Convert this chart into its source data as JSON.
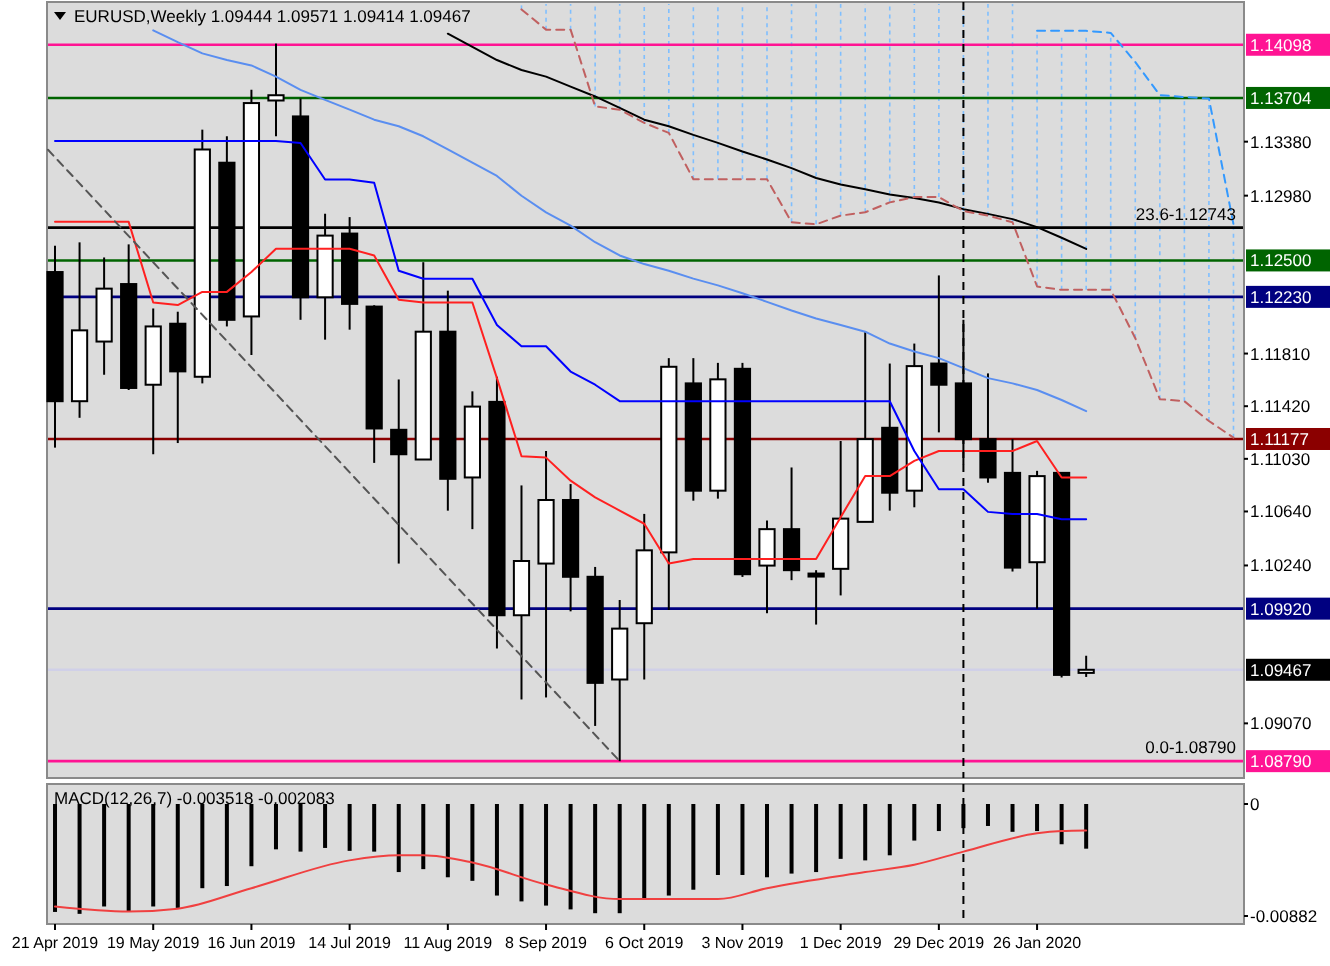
{
  "chart_data": [
    {
      "type": "candlestick",
      "title": "EURUSD,Weekly  1.09444 1.09571 1.09414 1.09467",
      "x": [
        "2019-04-21",
        "2019-04-28",
        "2019-05-05",
        "2019-05-12",
        "2019-05-19",
        "2019-05-26",
        "2019-06-02",
        "2019-06-09",
        "2019-06-16",
        "2019-06-23",
        "2019-06-30",
        "2019-07-07",
        "2019-07-14",
        "2019-07-21",
        "2019-07-28",
        "2019-08-04",
        "2019-08-11",
        "2019-08-18",
        "2019-08-25",
        "2019-09-01",
        "2019-09-08",
        "2019-09-15",
        "2019-09-22",
        "2019-09-29",
        "2019-10-06",
        "2019-10-13",
        "2019-10-20",
        "2019-10-27",
        "2019-11-03",
        "2019-11-10",
        "2019-11-17",
        "2019-11-24",
        "2019-12-01",
        "2019-12-08",
        "2019-12-15",
        "2019-12-22",
        "2019-12-29",
        "2020-01-05",
        "2020-01-12",
        "2020-01-19",
        "2020-01-26",
        "2020-02-02",
        "2020-02-09"
      ],
      "ohlc": [
        [
          1.12414,
          1.12609,
          1.11113,
          1.11457
        ],
        [
          1.11457,
          1.12634,
          1.11334,
          1.11982
        ],
        [
          1.11899,
          1.12522,
          1.11653,
          1.12291
        ],
        [
          1.12325,
          1.12619,
          1.1154,
          1.11555
        ],
        [
          1.11579,
          1.12144,
          1.11064,
          1.12011
        ],
        [
          1.12031,
          1.1212,
          1.11147,
          1.11678
        ],
        [
          1.11638,
          1.13469,
          1.11589,
          1.13322
        ],
        [
          1.13224,
          1.1342,
          1.12011,
          1.1206
        ],
        [
          1.12085,
          1.13764,
          1.118,
          1.13666
        ],
        [
          1.13685,
          1.14107,
          1.1342,
          1.13724
        ],
        [
          1.13567,
          1.137,
          1.1206,
          1.12227
        ],
        [
          1.12227,
          1.12846,
          1.11913,
          1.12684
        ],
        [
          1.12699,
          1.12821,
          1.11987,
          1.12178
        ],
        [
          1.12158,
          1.12168,
          1.11,
          1.11255
        ],
        [
          1.11245,
          1.11618,
          1.10254,
          1.11064
        ],
        [
          1.11025,
          1.12487,
          1.11025,
          1.11972
        ],
        [
          1.11972,
          1.12276,
          1.10646,
          1.10882
        ],
        [
          1.10892,
          1.1153,
          1.10509,
          1.11417
        ],
        [
          1.11452,
          1.11638,
          1.09625,
          1.09871
        ],
        [
          1.09871,
          1.10833,
          1.09247,
          1.10273
        ],
        [
          1.10254,
          1.11088,
          1.09262,
          1.10725
        ],
        [
          1.10725,
          1.10843,
          1.099,
          1.10156
        ],
        [
          1.10156,
          1.10229,
          1.09051,
          1.0937
        ],
        [
          1.09395,
          1.09984,
          1.0879,
          1.09772
        ],
        [
          1.09812,
          1.10622,
          1.09395,
          1.10352
        ],
        [
          1.10337,
          1.11776,
          1.0991,
          1.11712
        ],
        [
          1.11589,
          1.11776,
          1.1072,
          1.10794
        ],
        [
          1.10794,
          1.11741,
          1.10735,
          1.11619
        ],
        [
          1.11697,
          1.11741,
          1.10155,
          1.10175
        ],
        [
          1.10239,
          1.10573,
          1.09886,
          1.10509
        ],
        [
          1.10509,
          1.10966,
          1.10131,
          1.10205
        ],
        [
          1.1018,
          1.10205,
          1.09802,
          1.1016
        ],
        [
          1.10215,
          1.11162,
          1.10018,
          1.10587
        ],
        [
          1.10563,
          1.11972,
          1.10563,
          1.11176
        ],
        [
          1.1126,
          1.11736,
          1.10646,
          1.10779
        ],
        [
          1.10794,
          1.11884,
          1.10671,
          1.11717
        ],
        [
          1.11736,
          1.12389,
          1.11226,
          1.11579
        ],
        [
          1.11589,
          1.1206,
          1.1099,
          1.11176
        ],
        [
          1.11176,
          1.11663,
          1.10853,
          1.10892
        ],
        [
          1.10926,
          1.11176,
          1.10195,
          1.10224
        ],
        [
          1.10264,
          1.10941,
          1.0992,
          1.10902
        ],
        [
          1.10926,
          1.10926,
          1.0941,
          1.09429
        ],
        [
          1.09444,
          1.09571,
          1.09414,
          1.09467
        ]
      ],
      "series": [
        {
          "type": "line",
          "color": "#ff2020",
          "values": [
            1.12786,
            1.12786,
            1.12786,
            1.12786,
            1.12188,
            1.12169,
            1.12267,
            1.12267,
            1.12414,
            1.12586,
            1.12586,
            1.12586,
            1.12586,
            1.12537,
            1.12208,
            1.12188,
            1.12188,
            1.12188,
            1.11628,
            1.11049,
            1.11039,
            1.10868,
            1.10745,
            1.10647,
            1.10549,
            1.10254,
            1.10288,
            1.10288,
            1.10288,
            1.10288,
            1.10288,
            1.10288,
            1.10598,
            1.10902,
            1.10902,
            1.11015,
            1.11088,
            1.11088,
            1.11088,
            1.11088,
            1.11162,
            1.10892,
            1.10892
          ]
        },
        {
          "type": "line",
          "color": "#0000ff",
          "values": [
            1.13385,
            1.13385,
            1.13385,
            1.13385,
            1.13385,
            1.13385,
            1.13385,
            1.13385,
            1.13385,
            1.13385,
            1.1337,
            1.131,
            1.131,
            1.13076,
            1.12423,
            1.12364,
            1.12364,
            1.12364,
            1.12021,
            1.11864,
            1.11864,
            1.11677,
            1.11579,
            1.11457,
            1.11457,
            1.11457,
            1.11457,
            1.11457,
            1.11457,
            1.11457,
            1.11457,
            1.11457,
            1.11457,
            1.11457,
            1.11457,
            1.11088,
            1.10804,
            1.10804,
            1.10637,
            1.10622,
            1.10622,
            1.10583,
            1.10583
          ]
        },
        {
          "type": "line",
          "color": "#5a8ef0",
          "values": [
            null,
            null,
            null,
            null,
            1.14205,
            1.14117,
            1.14034,
            1.13985,
            1.13945,
            1.13862,
            1.13764,
            1.1369,
            1.13617,
            1.13543,
            1.13494,
            1.1342,
            1.13322,
            1.13224,
            1.13126,
            1.12979,
            1.12856,
            1.12758,
            1.12635,
            1.12537,
            1.12473,
            1.12424,
            1.12365,
            1.12315,
            1.12257,
            1.12193,
            1.12129,
            1.1207,
            1.12021,
            1.11972,
            1.11884,
            1.11825,
            1.11776,
            1.11702,
            1.11628,
            1.11589,
            1.1154,
            1.11466,
            1.11383
          ]
        },
        {
          "type": "line",
          "color": "#000000",
          "values": [
            null,
            null,
            null,
            null,
            null,
            null,
            null,
            null,
            null,
            null,
            null,
            null,
            null,
            null,
            null,
            null,
            1.1418,
            1.14083,
            1.13985,
            1.13911,
            1.13862,
            1.13788,
            1.13715,
            1.13631,
            1.13543,
            1.13494,
            1.1343,
            1.13371,
            1.13307,
            1.13248,
            1.13184,
            1.13111,
            1.13062,
            1.13027,
            1.12988,
            1.12963,
            1.12929,
            1.1288,
            1.12845,
            1.12806,
            1.12747,
            1.12668,
            1.12585
          ]
        },
        {
          "type": "line",
          "color": "#c06060",
          "line_style": "dashed",
          "x": [
            "2019-09-01",
            "2019-09-08",
            "2019-09-15",
            "2019-09-22",
            "2019-09-29",
            "2019-10-06",
            "2019-10-13",
            "2019-10-20",
            "2019-10-27",
            "2019-11-03",
            "2019-11-10",
            "2019-11-17",
            "2019-11-24",
            "2019-12-01",
            "2019-12-08",
            "2019-12-15",
            "2019-12-22",
            "2019-12-29",
            "2020-01-05",
            "2020-01-12",
            "2020-01-19",
            "2020-01-26",
            "2020-02-02",
            "2020-02-09",
            "2020-02-16",
            "2020-02-23",
            "2020-03-01",
            "2020-03-08",
            "2020-03-15",
            "2020-03-22"
          ],
          "values": [
            1.1436,
            1.1421,
            1.1421,
            1.13641,
            1.13617,
            1.13519,
            1.13445,
            1.13102,
            1.13102,
            1.13102,
            1.13102,
            1.12783,
            1.12768,
            1.12832,
            1.12857,
            1.1293,
            1.1297,
            1.1297,
            1.12866,
            1.12832,
            1.12783,
            1.12307,
            1.12282,
            1.12282,
            1.12282,
            1.11924,
            1.11472,
            1.11457,
            1.1131,
            1.11187
          ]
        },
        {
          "type": "line",
          "color": "#3399ff",
          "line_style": "dashed",
          "x": [
            "2020-01-26",
            "2020-02-02",
            "2020-02-09",
            "2020-02-16",
            "2020-02-23",
            "2020-03-01",
            "2020-03-08",
            "2020-03-15",
            "2020-03-22"
          ],
          "values": [
            1.14201,
            1.14201,
            1.14201,
            1.14186,
            1.1397,
            1.13725,
            1.1371,
            1.137,
            1.12768
          ]
        },
        {
          "type": "line",
          "color": "#555555",
          "line_style": "dashed",
          "x": [
            "2019-04-19",
            "2019-09-29"
          ],
          "values": [
            1.1332,
            1.0879
          ]
        }
      ],
      "xlim": [
        "2019-04-19",
        "2020-03-25"
      ],
      "ylim": [
        1.0868,
        1.144
      ],
      "yticks": [
        {
          "value": 1.1338,
          "label": "1.13380"
        },
        {
          "value": 1.1298,
          "label": "1.12980"
        },
        {
          "value": 1.1181,
          "label": "1.11810"
        },
        {
          "value": 1.1142,
          "label": "1.11420"
        },
        {
          "value": 1.1103,
          "label": "1.11030"
        },
        {
          "value": 1.1064,
          "label": "1.10640"
        },
        {
          "value": 1.1024,
          "label": "1.10240"
        },
        {
          "value": 1.0907,
          "label": "1.09070"
        }
      ],
      "tick_labels": "y",
      "ref_lines": [
        {
          "axis": "y",
          "value": 1.14098,
          "label": "1.14098",
          "color": "#ff1493"
        },
        {
          "axis": "y",
          "value": 1.13704,
          "label": "1.13704",
          "color": "#006400"
        },
        {
          "axis": "y",
          "value": 1.12743,
          "color": "#000000"
        },
        {
          "axis": "y",
          "value": 1.125,
          "label": "1.12500",
          "color": "#006400"
        },
        {
          "axis": "y",
          "value": 1.1223,
          "label": "1.12230",
          "color": "#000080"
        },
        {
          "axis": "y",
          "value": 1.11177,
          "label": "1.11177",
          "color": "#8b0000"
        },
        {
          "axis": "y",
          "value": 1.0992,
          "label": "1.09920",
          "color": "#000080"
        },
        {
          "axis": "y",
          "value": 1.09467,
          "label": "1.09467",
          "color": "#d0d0e8"
        },
        {
          "axis": "y",
          "value": 1.0879,
          "label": "1.08790",
          "color": "#ff1493"
        },
        {
          "axis": "x",
          "value": "2020-01-05",
          "color": "#000000",
          "line_style": "dashed"
        }
      ],
      "annotations": [
        {
          "text": "23.6-1.12743",
          "y": 1.12743
        },
        {
          "text": "0.0-1.08790",
          "y": 1.0879
        }
      ]
    },
    {
      "type": "bar",
      "title": "MACD(12,26,7) -0.003518 -0.002083",
      "x": [
        "2019-04-21",
        "2019-04-28",
        "2019-05-05",
        "2019-05-12",
        "2019-05-19",
        "2019-05-26",
        "2019-06-02",
        "2019-06-09",
        "2019-06-16",
        "2019-06-23",
        "2019-06-30",
        "2019-07-07",
        "2019-07-14",
        "2019-07-21",
        "2019-07-28",
        "2019-08-04",
        "2019-08-11",
        "2019-08-18",
        "2019-08-25",
        "2019-09-01",
        "2019-09-08",
        "2019-09-15",
        "2019-09-22",
        "2019-09-29",
        "2019-10-06",
        "2019-10-13",
        "2019-10-20",
        "2019-10-27",
        "2019-11-03",
        "2019-11-10",
        "2019-11-17",
        "2019-11-24",
        "2019-12-01",
        "2019-12-08",
        "2019-12-15",
        "2019-12-22",
        "2019-12-29",
        "2020-01-05",
        "2020-01-12",
        "2020-01-19",
        "2020-01-26",
        "2020-02-02",
        "2020-02-09"
      ],
      "series": [
        {
          "type": "bar",
          "color": "#000000",
          "values": [
            -0.0085,
            -0.00865,
            -0.00807,
            -0.00847,
            -0.00807,
            -0.00818,
            -0.00663,
            -0.00646,
            -0.0049,
            -0.00357,
            -0.00375,
            -0.00346,
            -0.00369,
            -0.00375,
            -0.00536,
            -0.00513,
            -0.00577,
            -0.00605,
            -0.00721,
            -0.00767,
            -0.008,
            -0.0083,
            -0.0086,
            -0.0086,
            -0.00749,
            -0.00721,
            -0.00675,
            -0.00559,
            -0.00559,
            -0.00577,
            -0.00548,
            -0.00536,
            -0.00432,
            -0.00444,
            -0.00404,
            -0.00288,
            -0.00213,
            -0.0019,
            -0.00173,
            -0.00219,
            -0.00213,
            -0.00317,
            -0.003518
          ]
        },
        {
          "type": "line",
          "color": "#f04040",
          "x": [
            "2019-04-21",
            "2019-05-12",
            "2019-05-26",
            "2019-06-16",
            "2019-07-14",
            "2019-07-28",
            "2019-08-04",
            "2019-08-18",
            "2019-09-08",
            "2019-09-29",
            "2019-10-27",
            "2019-11-10",
            "2019-12-08",
            "2019-12-22",
            "2020-01-05",
            "2020-01-26",
            "2020-02-02",
            "2020-02-09"
          ],
          "values": [
            -0.00807,
            -0.00847,
            -0.00824,
            -0.00663,
            -0.00444,
            -0.00404,
            -0.00404,
            -0.00461,
            -0.00634,
            -0.00749,
            -0.00749,
            -0.00663,
            -0.00536,
            -0.00478,
            -0.00375,
            -0.00231,
            -0.00213,
            -0.002083
          ]
        }
      ],
      "xlim": [
        "2019-04-19",
        "2020-03-25"
      ],
      "ylim": [
        -0.00882,
        0
      ],
      "yticks": [
        0,
        -0.00882
      ],
      "xticks": [
        {
          "value": "2019-04-21",
          "label": "21 Apr 2019"
        },
        {
          "value": "2019-05-19",
          "label": "19 May 2019"
        },
        {
          "value": "2019-06-16",
          "label": "16 Jun 2019"
        },
        {
          "value": "2019-07-14",
          "label": "14 Jul 2019"
        },
        {
          "value": "2019-08-11",
          "label": "11 Aug 2019"
        },
        {
          "value": "2019-09-08",
          "label": "8 Sep 2019"
        },
        {
          "value": "2019-10-06",
          "label": "6 Oct 2019"
        },
        {
          "value": "2019-11-03",
          "label": "3 Nov 2019"
        },
        {
          "value": "2019-12-01",
          "label": "1 Dec 2019"
        },
        {
          "value": "2019-12-29",
          "label": "29 Dec 2019"
        },
        {
          "value": "2020-01-26",
          "label": "26 Jan 2020"
        }
      ],
      "ref_lines": [
        {
          "axis": "x",
          "value": "2020-01-05",
          "color": "#000000",
          "line_style": "dashed"
        }
      ]
    }
  ]
}
